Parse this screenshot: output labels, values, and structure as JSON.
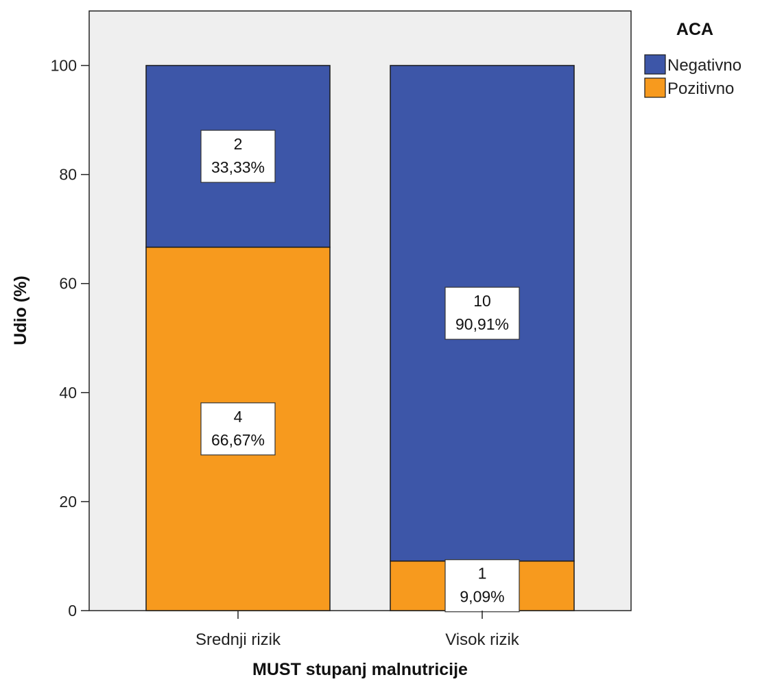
{
  "chart_data": {
    "type": "bar",
    "stacked": true,
    "categories": [
      "Srednji rizik",
      "Visok rizik"
    ],
    "series": [
      {
        "name": "Pozitivno",
        "color": "#f79a1e",
        "values": [
          66.67,
          9.09
        ],
        "counts": [
          "4",
          "1"
        ],
        "labels": [
          "66,67%",
          "9,09%"
        ]
      },
      {
        "name": "Negativno",
        "color": "#3d56a8",
        "values": [
          33.33,
          90.91
        ],
        "counts": [
          "2",
          "10"
        ],
        "labels": [
          "33,33%",
          "90,91%"
        ]
      }
    ],
    "xlabel": "MUST stupanj malnutricije",
    "ylabel": "Udio (%)",
    "ylim": [
      0,
      110
    ],
    "yticks": [
      "0",
      "20",
      "40",
      "60",
      "80",
      "100"
    ],
    "legend": {
      "title": "ACA",
      "position": "right",
      "entries": [
        "Negativno",
        "Pozitivno"
      ]
    },
    "plot_background": "#efefef",
    "grid": false
  }
}
